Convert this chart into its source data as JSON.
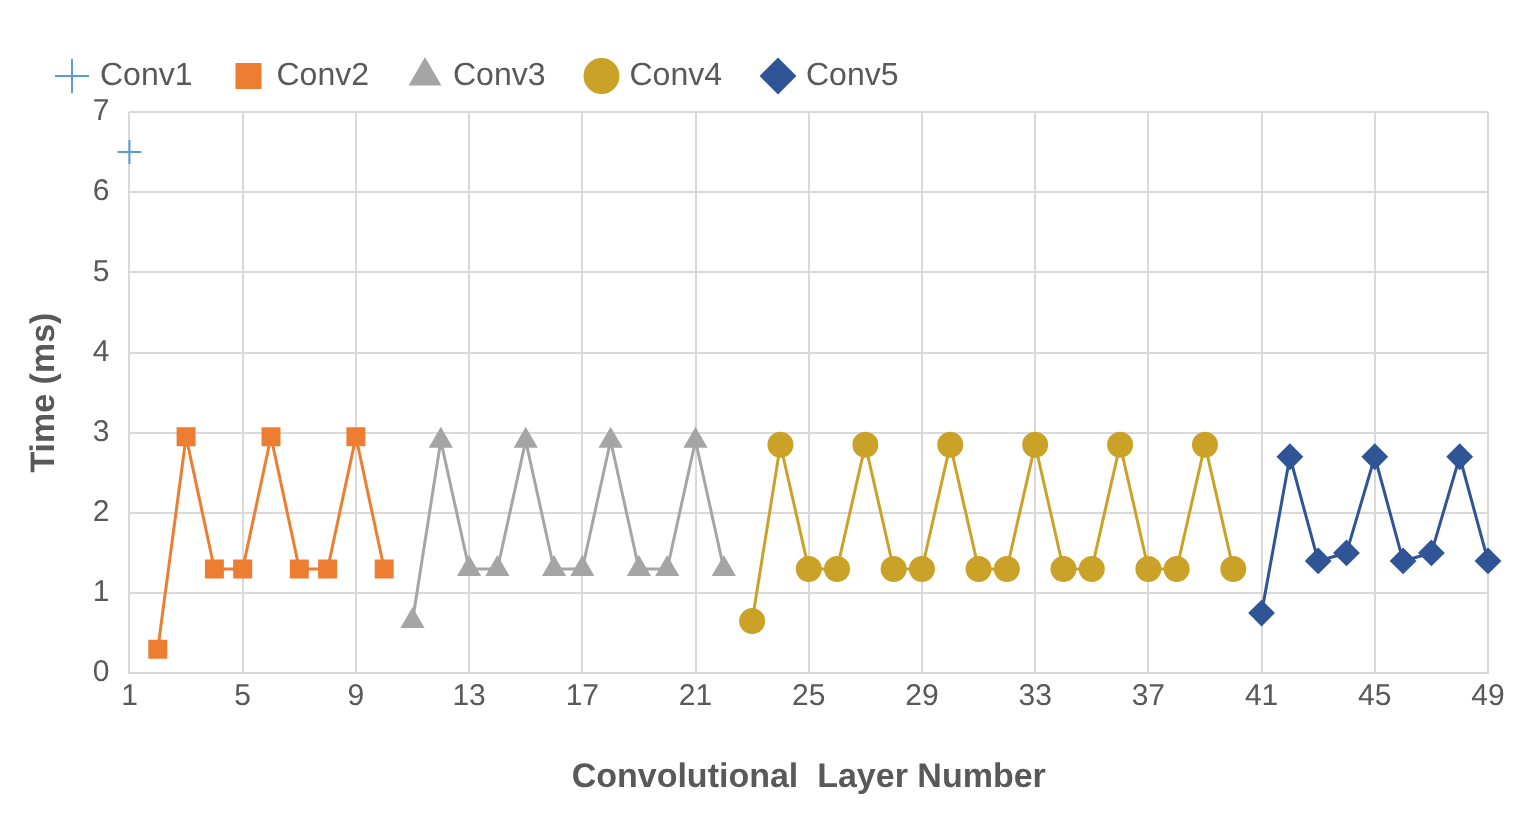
{
  "chart_data": {
    "type": "line",
    "xlabel": "Convolutional  Layer Number",
    "ylabel": "Time (ms)",
    "xlim": [
      1,
      49
    ],
    "xticks": [
      1,
      5,
      9,
      13,
      17,
      21,
      25,
      29,
      33,
      37,
      41,
      45,
      49
    ],
    "ylim": [
      0,
      7
    ],
    "yticks": [
      0,
      1,
      2,
      3,
      4,
      5,
      6,
      7
    ],
    "grid": true,
    "legend": "top",
    "series": [
      {
        "name": "Conv1",
        "color": "#5b9bd5",
        "marker": "cross",
        "x": [
          1
        ],
        "values": [
          6.5
        ]
      },
      {
        "name": "Conv2",
        "color": "#ed7d31",
        "marker": "square",
        "x": [
          2,
          3,
          4,
          5,
          6,
          7,
          8,
          9,
          10
        ],
        "values": [
          0.3,
          2.95,
          1.3,
          1.3,
          2.95,
          1.3,
          1.3,
          2.95,
          1.3
        ]
      },
      {
        "name": "Conv3",
        "color": "#a5a5a5",
        "marker": "triangle",
        "x": [
          11,
          12,
          13,
          14,
          15,
          16,
          17,
          18,
          19,
          20,
          21,
          22
        ],
        "values": [
          0.65,
          2.9,
          1.3,
          1.3,
          2.9,
          1.3,
          1.3,
          2.9,
          1.3,
          1.3,
          2.9,
          1.3
        ]
      },
      {
        "name": "Conv4",
        "color": "#c9a227",
        "marker": "circle",
        "x": [
          23,
          24,
          25,
          26,
          27,
          28,
          29,
          30,
          31,
          32,
          33,
          34,
          35,
          36,
          37,
          38,
          39,
          40
        ],
        "values": [
          0.65,
          2.85,
          1.3,
          1.3,
          2.85,
          1.3,
          1.3,
          2.85,
          1.3,
          1.3,
          2.85,
          1.3,
          1.3,
          2.85,
          1.3,
          1.3,
          2.85,
          1.3
        ]
      },
      {
        "name": "Conv5",
        "color": "#2f5597",
        "marker": "diamond",
        "x": [
          41,
          42,
          43,
          44,
          45,
          46,
          47,
          48,
          49
        ],
        "values": [
          0.75,
          2.7,
          1.4,
          1.5,
          2.7,
          1.4,
          1.5,
          2.7,
          1.4
        ]
      }
    ]
  }
}
